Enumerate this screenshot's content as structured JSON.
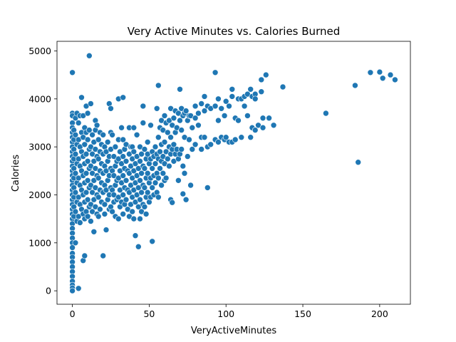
{
  "chart_data": {
    "type": "scatter",
    "title": "Very Active Minutes vs. Calories Burned",
    "xlabel": "VeryActiveMinutes",
    "ylabel": "Calories",
    "xlim": [
      -10,
      220
    ],
    "ylim": [
      -280,
      5200
    ],
    "xticks": [
      0,
      50,
      100,
      150,
      200
    ],
    "yticks": [
      0,
      1000,
      2000,
      3000,
      4000,
      5000
    ],
    "grid": false,
    "color": "#1f77b4",
    "points": [
      [
        0,
        4550
      ],
      [
        0,
        3700
      ],
      [
        0,
        3650
      ],
      [
        0,
        3500
      ],
      [
        0,
        3400
      ],
      [
        0,
        3300
      ],
      [
        0,
        3200
      ],
      [
        0,
        3100
      ],
      [
        0,
        3000
      ],
      [
        0,
        2900
      ],
      [
        0,
        2800
      ],
      [
        0,
        2700
      ],
      [
        0,
        2600
      ],
      [
        0,
        2500
      ],
      [
        0,
        2400
      ],
      [
        0,
        2300
      ],
      [
        0,
        2200
      ],
      [
        0,
        2100
      ],
      [
        0,
        2000
      ],
      [
        0,
        1900
      ],
      [
        0,
        1800
      ],
      [
        0,
        1700
      ],
      [
        0,
        1600
      ],
      [
        0,
        1500
      ],
      [
        0,
        1400
      ],
      [
        0,
        1300
      ],
      [
        0,
        1200
      ],
      [
        0,
        1100
      ],
      [
        0,
        1000
      ],
      [
        0,
        900
      ],
      [
        0,
        780
      ],
      [
        0,
        700
      ],
      [
        0,
        600
      ],
      [
        0,
        500
      ],
      [
        0,
        400
      ],
      [
        0,
        300
      ],
      [
        0,
        200
      ],
      [
        0,
        120
      ],
      [
        0,
        60
      ],
      [
        0,
        0
      ],
      [
        1,
        3350
      ],
      [
        1,
        3150
      ],
      [
        1,
        2950
      ],
      [
        1,
        2750
      ],
      [
        1,
        2550
      ],
      [
        1,
        2350
      ],
      [
        1,
        2150
      ],
      [
        1,
        1950
      ],
      [
        1,
        1750
      ],
      [
        1,
        1550
      ],
      [
        2,
        3600
      ],
      [
        2,
        3250
      ],
      [
        2,
        2850
      ],
      [
        2,
        2450
      ],
      [
        2,
        2050
      ],
      [
        2,
        1650
      ],
      [
        2,
        1000
      ],
      [
        3,
        3700
      ],
      [
        3,
        3050
      ],
      [
        3,
        2650
      ],
      [
        3,
        2250
      ],
      [
        3,
        1850
      ],
      [
        3,
        1450
      ],
      [
        4,
        3500
      ],
      [
        4,
        3150
      ],
      [
        4,
        2750
      ],
      [
        4,
        2350
      ],
      [
        4,
        1950
      ],
      [
        4,
        1550
      ],
      [
        4,
        50
      ],
      [
        5,
        3650
      ],
      [
        5,
        3000
      ],
      [
        5,
        2600
      ],
      [
        5,
        2200
      ],
      [
        5,
        1800
      ],
      [
        5,
        1420
      ],
      [
        6,
        4030
      ],
      [
        6,
        3300
      ],
      [
        6,
        2900
      ],
      [
        6,
        2500
      ],
      [
        6,
        2100
      ],
      [
        6,
        1700
      ],
      [
        7,
        3650
      ],
      [
        7,
        3200
      ],
      [
        7,
        2800
      ],
      [
        7,
        2400
      ],
      [
        7,
        2000
      ],
      [
        7,
        1600
      ],
      [
        7,
        630
      ],
      [
        8,
        3400
      ],
      [
        8,
        3050
      ],
      [
        8,
        2650
      ],
      [
        8,
        2250
      ],
      [
        8,
        1850
      ],
      [
        8,
        1500
      ],
      [
        8,
        730
      ],
      [
        9,
        3850
      ],
      [
        9,
        3300
      ],
      [
        9,
        2850
      ],
      [
        9,
        2450
      ],
      [
        9,
        2050
      ],
      [
        9,
        1650
      ],
      [
        10,
        3700
      ],
      [
        10,
        3150
      ],
      [
        10,
        2700
      ],
      [
        10,
        2300
      ],
      [
        10,
        1900
      ],
      [
        10,
        1550
      ],
      [
        11,
        4900
      ],
      [
        11,
        3350
      ],
      [
        11,
        2950
      ],
      [
        11,
        2550
      ],
      [
        11,
        2150
      ],
      [
        11,
        1750
      ],
      [
        12,
        3900
      ],
      [
        12,
        3000
      ],
      [
        12,
        2600
      ],
      [
        12,
        2200
      ],
      [
        12,
        1800
      ],
      [
        12,
        1450
      ],
      [
        13,
        3250
      ],
      [
        13,
        2850
      ],
      [
        13,
        2450
      ],
      [
        13,
        2050
      ],
      [
        13,
        1650
      ],
      [
        14,
        3100
      ],
      [
        14,
        2700
      ],
      [
        14,
        2300
      ],
      [
        14,
        1900
      ],
      [
        14,
        1230
      ],
      [
        15,
        3550
      ],
      [
        15,
        3350
      ],
      [
        15,
        2950
      ],
      [
        15,
        2550
      ],
      [
        15,
        2150
      ],
      [
        15,
        1750
      ],
      [
        16,
        3450
      ],
      [
        16,
        2800
      ],
      [
        16,
        2400
      ],
      [
        16,
        2000
      ],
      [
        16,
        1600
      ],
      [
        17,
        3150
      ],
      [
        17,
        2750
      ],
      [
        17,
        2350
      ],
      [
        17,
        1950
      ],
      [
        17,
        1550
      ],
      [
        18,
        3300
      ],
      [
        18,
        2900
      ],
      [
        18,
        2500
      ],
      [
        18,
        2100
      ],
      [
        18,
        1700
      ],
      [
        19,
        3050
      ],
      [
        19,
        2650
      ],
      [
        19,
        2250
      ],
      [
        19,
        1850
      ],
      [
        20,
        3250
      ],
      [
        20,
        2850
      ],
      [
        20,
        2450
      ],
      [
        20,
        2050
      ],
      [
        20,
        730
      ],
      [
        21,
        3000
      ],
      [
        21,
        2600
      ],
      [
        21,
        2200
      ],
      [
        21,
        1800
      ],
      [
        21,
        1600
      ],
      [
        22,
        2900
      ],
      [
        22,
        2500
      ],
      [
        22,
        2100
      ],
      [
        22,
        1270
      ],
      [
        23,
        3100
      ],
      [
        23,
        2700
      ],
      [
        23,
        2300
      ],
      [
        23,
        1900
      ],
      [
        24,
        3900
      ],
      [
        24,
        2800
      ],
      [
        24,
        2400
      ],
      [
        24,
        2000
      ],
      [
        24,
        1700
      ],
      [
        25,
        3800
      ],
      [
        25,
        3300
      ],
      [
        25,
        2950
      ],
      [
        25,
        2550
      ],
      [
        25,
        2150
      ],
      [
        25,
        1750
      ],
      [
        26,
        3250
      ],
      [
        26,
        2500
      ],
      [
        26,
        2100
      ],
      [
        26,
        1650
      ],
      [
        27,
        2800
      ],
      [
        27,
        2400
      ],
      [
        27,
        2000
      ],
      [
        27,
        1850
      ],
      [
        28,
        3000
      ],
      [
        28,
        2600
      ],
      [
        28,
        2200
      ],
      [
        28,
        1550
      ],
      [
        29,
        2700
      ],
      [
        29,
        2300
      ],
      [
        29,
        1900
      ],
      [
        30,
        4000
      ],
      [
        30,
        3150
      ],
      [
        30,
        2750
      ],
      [
        30,
        2350
      ],
      [
        30,
        1950
      ],
      [
        30,
        1500
      ],
      [
        31,
        2900
      ],
      [
        31,
        2500
      ],
      [
        31,
        2100
      ],
      [
        31,
        1750
      ],
      [
        32,
        3400
      ],
      [
        32,
        2650
      ],
      [
        32,
        2250
      ],
      [
        32,
        1850
      ],
      [
        33,
        4030
      ],
      [
        33,
        3150
      ],
      [
        33,
        2800
      ],
      [
        33,
        2400
      ],
      [
        33,
        2000
      ],
      [
        33,
        1600
      ],
      [
        34,
        2950
      ],
      [
        34,
        2550
      ],
      [
        34,
        2150
      ],
      [
        34,
        1800
      ],
      [
        35,
        3050
      ],
      [
        35,
        2700
      ],
      [
        35,
        2300
      ],
      [
        35,
        1900
      ],
      [
        36,
        2500
      ],
      [
        36,
        2100
      ],
      [
        36,
        1700
      ],
      [
        37,
        3400
      ],
      [
        37,
        2850
      ],
      [
        37,
        2450
      ],
      [
        37,
        2050
      ],
      [
        37,
        1550
      ],
      [
        38,
        3000
      ],
      [
        38,
        2600
      ],
      [
        38,
        2200
      ],
      [
        38,
        1800
      ],
      [
        39,
        3000
      ],
      [
        39,
        2750
      ],
      [
        39,
        2350
      ],
      [
        39,
        1950
      ],
      [
        39,
        1650
      ],
      [
        40,
        3400
      ],
      [
        40,
        2900
      ],
      [
        40,
        2500
      ],
      [
        40,
        2100
      ],
      [
        40,
        1500
      ],
      [
        41,
        2650
      ],
      [
        41,
        2250
      ],
      [
        41,
        1850
      ],
      [
        41,
        1150
      ],
      [
        42,
        3250
      ],
      [
        42,
        2800
      ],
      [
        42,
        2400
      ],
      [
        42,
        2000
      ],
      [
        43,
        2550
      ],
      [
        43,
        2150
      ],
      [
        43,
        1750
      ],
      [
        43,
        920
      ],
      [
        44,
        3000
      ],
      [
        44,
        2700
      ],
      [
        44,
        2300
      ],
      [
        44,
        1900
      ],
      [
        44,
        1500
      ],
      [
        45,
        2850
      ],
      [
        45,
        2450
      ],
      [
        45,
        2050
      ],
      [
        45,
        1650
      ],
      [
        46,
        3850
      ],
      [
        46,
        3500
      ],
      [
        46,
        2600
      ],
      [
        46,
        2200
      ],
      [
        46,
        1800
      ],
      [
        47,
        2950
      ],
      [
        47,
        2550
      ],
      [
        47,
        2150
      ],
      [
        47,
        1750
      ],
      [
        48,
        2750
      ],
      [
        48,
        2350
      ],
      [
        48,
        1950
      ],
      [
        48,
        1600
      ],
      [
        49,
        3100
      ],
      [
        49,
        2850
      ],
      [
        49,
        2450
      ],
      [
        49,
        2050
      ],
      [
        50,
        2650
      ],
      [
        50,
        2250
      ],
      [
        50,
        1850
      ],
      [
        51,
        3450
      ],
      [
        51,
        2750
      ],
      [
        51,
        2350
      ],
      [
        51,
        1950
      ],
      [
        52,
        2900
      ],
      [
        52,
        2550
      ],
      [
        52,
        2150
      ],
      [
        52,
        1030
      ],
      [
        53,
        2800
      ],
      [
        53,
        2400
      ],
      [
        53,
        2000
      ],
      [
        54,
        3000
      ],
      [
        54,
        2650
      ],
      [
        54,
        2250
      ],
      [
        55,
        3800
      ],
      [
        55,
        2850
      ],
      [
        55,
        2450
      ],
      [
        55,
        2050
      ],
      [
        56,
        4280
      ],
      [
        56,
        3200
      ],
      [
        56,
        2750
      ],
      [
        56,
        2350
      ],
      [
        56,
        1950
      ],
      [
        57,
        3400
      ],
      [
        57,
        2900
      ],
      [
        57,
        2550
      ],
      [
        58,
        3550
      ],
      [
        58,
        3050
      ],
      [
        58,
        2700
      ],
      [
        58,
        2200
      ],
      [
        59,
        3350
      ],
      [
        59,
        2800
      ],
      [
        59,
        2450
      ],
      [
        60,
        3650
      ],
      [
        60,
        3100
      ],
      [
        60,
        2650
      ],
      [
        60,
        2300
      ],
      [
        61,
        3500
      ],
      [
        61,
        2900
      ],
      [
        61,
        2350
      ],
      [
        62,
        3300
      ],
      [
        62,
        2750
      ],
      [
        63,
        3550
      ],
      [
        63,
        3000
      ],
      [
        63,
        2600
      ],
      [
        64,
        3800
      ],
      [
        64,
        3200
      ],
      [
        64,
        2850
      ],
      [
        64,
        1900
      ],
      [
        65,
        3450
      ],
      [
        65,
        2950
      ],
      [
        65,
        1840
      ],
      [
        66,
        3600
      ],
      [
        66,
        3050
      ],
      [
        66,
        2700
      ],
      [
        67,
        3750
      ],
      [
        67,
        3300
      ],
      [
        67,
        2850
      ],
      [
        68,
        3400
      ],
      [
        68,
        2950
      ],
      [
        69,
        3700
      ],
      [
        69,
        2750
      ],
      [
        69,
        2300
      ],
      [
        70,
        4200
      ],
      [
        70,
        3550
      ],
      [
        70,
        2850
      ],
      [
        71,
        3800
      ],
      [
        71,
        3350
      ],
      [
        71,
        2950
      ],
      [
        72,
        3650
      ],
      [
        72,
        2600
      ],
      [
        72,
        2020
      ],
      [
        73,
        3700
      ],
      [
        73,
        3200
      ],
      [
        73,
        2450
      ],
      [
        74,
        3750
      ],
      [
        74,
        1900
      ],
      [
        75,
        3550
      ],
      [
        75,
        2800
      ],
      [
        76,
        3650
      ],
      [
        76,
        3150
      ],
      [
        77,
        3650
      ],
      [
        77,
        2200
      ],
      [
        78,
        3400
      ],
      [
        78,
        2950
      ],
      [
        80,
        3850
      ],
      [
        80,
        3600
      ],
      [
        80,
        3050
      ],
      [
        82,
        3700
      ],
      [
        82,
        3450
      ],
      [
        84,
        3900
      ],
      [
        84,
        3200
      ],
      [
        84,
        2950
      ],
      [
        86,
        4050
      ],
      [
        86,
        3750
      ],
      [
        86,
        3200
      ],
      [
        88,
        3850
      ],
      [
        88,
        3000
      ],
      [
        88,
        2150
      ],
      [
        90,
        3800
      ],
      [
        90,
        3050
      ],
      [
        93,
        4550
      ],
      [
        93,
        3850
      ],
      [
        93,
        3150
      ],
      [
        95,
        4000
      ],
      [
        95,
        3550
      ],
      [
        95,
        3100
      ],
      [
        97,
        3800
      ],
      [
        97,
        3200
      ],
      [
        99,
        3650
      ],
      [
        99,
        3150
      ],
      [
        100,
        3950
      ],
      [
        100,
        3200
      ],
      [
        102,
        3850
      ],
      [
        102,
        3100
      ],
      [
        104,
        4200
      ],
      [
        104,
        4050
      ],
      [
        104,
        3100
      ],
      [
        106,
        3600
      ],
      [
        106,
        3150
      ],
      [
        108,
        3550
      ],
      [
        108,
        4000
      ],
      [
        110,
        4000
      ],
      [
        110,
        3200
      ],
      [
        112,
        4050
      ],
      [
        112,
        3850
      ],
      [
        114,
        4100
      ],
      [
        114,
        3650
      ],
      [
        116,
        4200
      ],
      [
        116,
        3200
      ],
      [
        117,
        4050
      ],
      [
        117,
        3400
      ],
      [
        119,
        4100
      ],
      [
        119,
        4000
      ],
      [
        119,
        3350
      ],
      [
        121,
        3450
      ],
      [
        123,
        4400
      ],
      [
        123,
        4150
      ],
      [
        124,
        3600
      ],
      [
        124,
        3400
      ],
      [
        126,
        4500
      ],
      [
        128,
        3600
      ],
      [
        131,
        3450
      ],
      [
        137,
        4250
      ],
      [
        165,
        3700
      ],
      [
        184,
        4280
      ],
      [
        186,
        2680
      ],
      [
        194,
        4550
      ],
      [
        200,
        4560
      ],
      [
        202,
        4430
      ],
      [
        207,
        4500
      ],
      [
        210,
        4400
      ]
    ]
  }
}
